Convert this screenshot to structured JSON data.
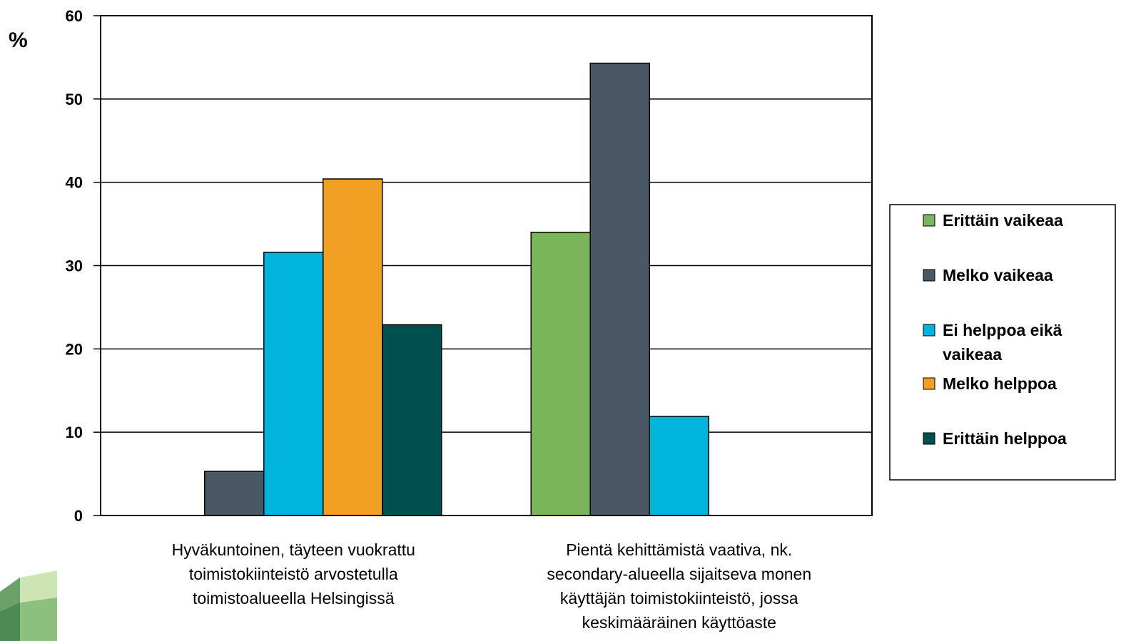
{
  "chart_data": {
    "type": "bar",
    "ylabel": "%",
    "ylim": [
      0,
      60
    ],
    "yticks": [
      "0",
      "10",
      "20",
      "30",
      "40",
      "50",
      "60"
    ],
    "ytick_values": [
      0,
      10,
      20,
      30,
      40,
      50,
      60
    ],
    "grid": true,
    "legend_position": "right",
    "categories": [
      [
        "Hyväkuntoinen, täyteen vuokrattu",
        "toimistokiinteistö arvostetulla",
        "toimistoalueella Helsingissä"
      ],
      [
        "Pientä kehittämistä vaativa, nk.",
        "secondary-alueella sijaitseva monen",
        "käyttäjän toimistokiinteistö, jossa",
        "keskimääräinen käyttöaste"
      ]
    ],
    "series": [
      {
        "name": "Erittäin vaikeaa",
        "legend_lines": [
          "Erittäin vaikeaa"
        ],
        "color": "#7ab55c",
        "values": [
          0,
          34.0
        ]
      },
      {
        "name": "Melko vaikeaa",
        "legend_lines": [
          "Melko vaikeaa"
        ],
        "color": "#4a5866",
        "values": [
          5.3,
          54.3
        ]
      },
      {
        "name": "Ei helppoa eikä vaikeaa",
        "legend_lines": [
          "Ei helppoa eikä",
          "vaikeaa"
        ],
        "color": "#00b4dc",
        "values": [
          31.6,
          11.9
        ]
      },
      {
        "name": "Melko helppoa",
        "legend_lines": [
          "Melko helppoa"
        ],
        "color": "#f2a024",
        "values": [
          40.4,
          0
        ]
      },
      {
        "name": "Erittäin helppoa",
        "legend_lines": [
          "Erittäin helppoa"
        ],
        "color": "#005050",
        "values": [
          22.9,
          0
        ]
      }
    ]
  }
}
